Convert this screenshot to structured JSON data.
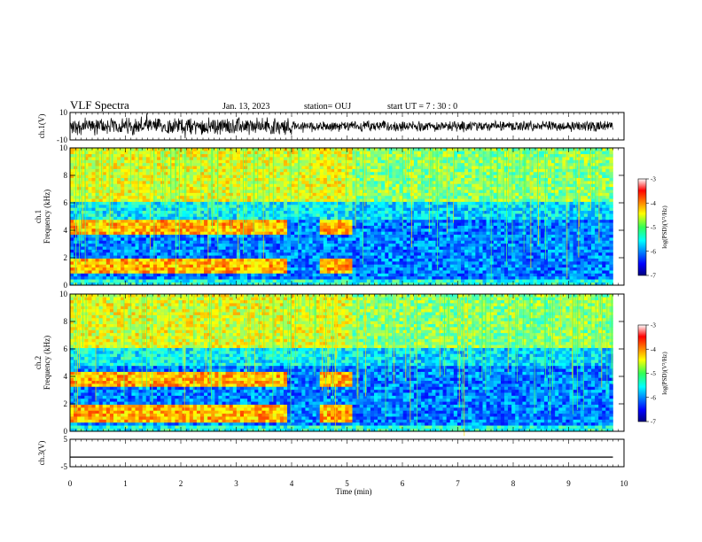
{
  "header": {
    "title": "VLF Spectra",
    "date": "Jan. 13, 2023",
    "station": "station= OUJ",
    "start": "start  UT =   7 : 30 : 0"
  },
  "chart_data": [
    {
      "type": "line",
      "name": "ch1-waveform",
      "ylabel": "ch.1(V)",
      "ylim": [
        -10,
        10
      ],
      "yticks": [
        "10",
        "-10"
      ],
      "xlim": [
        0,
        10
      ],
      "trace_end": 9.8,
      "description_values": {
        "baseline": 0,
        "typical_amplitude_early": 5,
        "typical_amplitude_late": 3
      }
    },
    {
      "type": "heatmap",
      "name": "ch1-spectrogram",
      "ylabel": "ch.1\nFrequency (kHz)",
      "ylabel_line1": "ch.1",
      "ylabel_line2": "Frequency (kHz)",
      "ylim": [
        0,
        10
      ],
      "yticks": [
        "0",
        "2",
        "4",
        "6",
        "8",
        "10"
      ],
      "xlim": [
        0,
        10
      ],
      "data_end": 9.8,
      "band_segments": [
        [
          0,
          3.9
        ],
        [
          4.5,
          5.1
        ]
      ],
      "bands_khz": [
        1.5,
        4.3
      ],
      "quiet_after_min": 5.1,
      "colorbar": {
        "label": "log(PSD)(V²/Hz)",
        "ticks": [
          "-3",
          "-4",
          "-5",
          "-6",
          "-7"
        ],
        "range": [
          -7,
          -3
        ]
      }
    },
    {
      "type": "heatmap",
      "name": "ch2-spectrogram",
      "ylabel": "ch.2\nFrequency (kHz)",
      "ylabel_line1": "ch.2",
      "ylabel_line2": "Frequency (kHz)",
      "ylim": [
        0,
        10
      ],
      "yticks": [
        "0",
        "2",
        "4",
        "6",
        "8",
        "10"
      ],
      "xlim": [
        0,
        10
      ],
      "data_end": 9.8,
      "band_segments": [
        [
          0,
          3.9
        ],
        [
          4.5,
          5.1
        ]
      ],
      "bands_khz": [
        1.3,
        3.9
      ],
      "quiet_after_min": 5.1,
      "colorbar": {
        "label": "log(PSD)(V²/Hz)",
        "ticks": [
          "-3",
          "-4",
          "-5",
          "-6",
          "-7"
        ],
        "range": [
          -7,
          -3
        ]
      }
    },
    {
      "type": "line",
      "name": "ch3-waveform",
      "ylabel": "ch.3(V)",
      "ylim": [
        -5,
        5
      ],
      "yticks": [
        "5",
        "-5"
      ],
      "xlim": [
        0,
        10
      ],
      "values": {
        "x": [
          0,
          9.8
        ],
        "y": [
          -1.5,
          -1.5
        ]
      }
    }
  ],
  "x_axis": {
    "label": "Time  (min)",
    "ticks": [
      "0",
      "1",
      "2",
      "3",
      "4",
      "5",
      "6",
      "7",
      "8",
      "9",
      "10"
    ],
    "range": [
      0,
      10
    ]
  }
}
